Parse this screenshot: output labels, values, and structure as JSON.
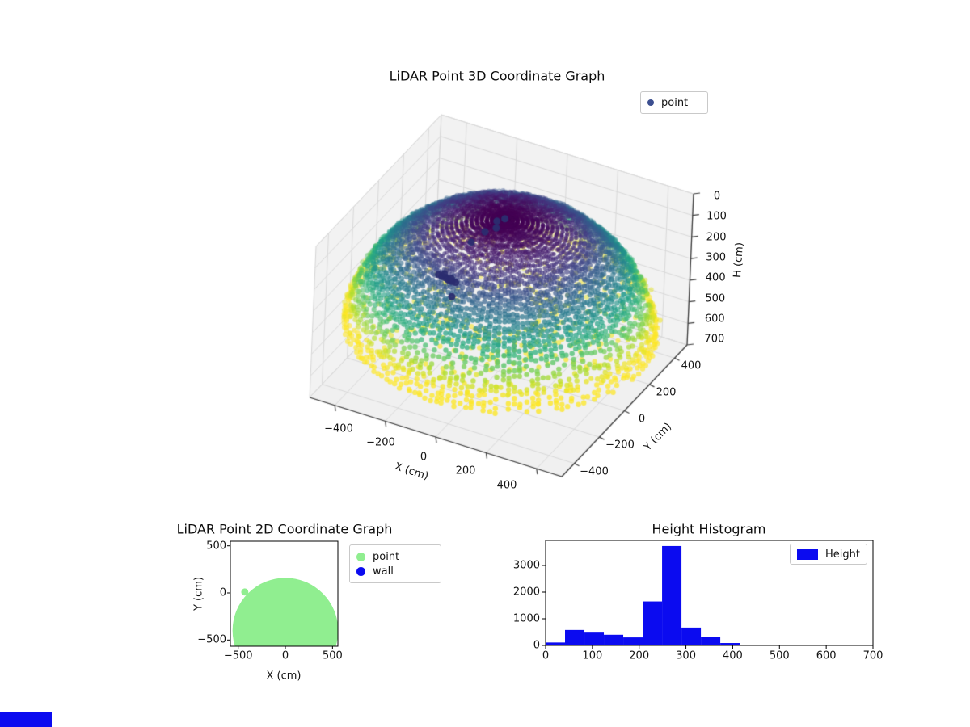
{
  "plots": {
    "p3d": {
      "title": "LiDAR Point 3D Coordinate Graph",
      "legend_label": "point",
      "legend_marker_color": "#3c4f90",
      "xlabel": "X (cm)",
      "ylabel": "Y (cm)",
      "zlabel": "H (cm)",
      "xticklabels": [
        "−400",
        "−200",
        "0",
        "200",
        "400"
      ],
      "yticklabels": [
        "−400",
        "−200",
        "0",
        "200",
        "400"
      ],
      "zticklabels": [
        "0",
        "100",
        "200",
        "300",
        "400",
        "500",
        "600",
        "700"
      ]
    },
    "p2d": {
      "title": "LiDAR Point 2D Coordinate Graph",
      "xlabel": "X (cm)",
      "ylabel": "Y (cm)",
      "xticklabels": [
        "−500",
        "0",
        "500"
      ],
      "yticklabels": [
        "500",
        "0",
        "−500"
      ],
      "legend": [
        {
          "label": "point",
          "color": "#90ee90"
        },
        {
          "label": "wall",
          "color": "#0b0bf0"
        }
      ]
    },
    "hist": {
      "title": "Height Histogram",
      "legend_label": "Height",
      "bar_color": "#0b0bf0",
      "xticklabels": [
        "0",
        "100",
        "200",
        "300",
        "400",
        "500",
        "600",
        "700"
      ],
      "yticklabels": [
        "0",
        "1000",
        "2000",
        "3000"
      ]
    }
  },
  "strip": {
    "color": "#0b0bf0"
  },
  "chart_data": [
    {
      "type": "scatter",
      "id": "lidar-3d",
      "title": "LiDAR Point 3D Coordinate Graph",
      "xlabel": "X (cm)",
      "ylabel": "Y (cm)",
      "zlabel": "H (cm)",
      "xlim": [
        -500,
        500
      ],
      "ylim": [
        -500,
        500
      ],
      "zlim": [
        0,
        700
      ],
      "z_axis_inverted": true,
      "xticks": [
        -400,
        -200,
        0,
        200,
        400
      ],
      "yticks": [
        -400,
        -200,
        0,
        200,
        400
      ],
      "zticks": [
        0,
        100,
        200,
        300,
        400,
        500,
        600,
        700
      ],
      "legend": [
        "point"
      ],
      "series": [
        {
          "name": "point",
          "marker": "circle",
          "colormap": "viridis",
          "color_by": "H",
          "geometry": "dense hemispherical LiDAR shell, radius ~560 cm centered at origin; H from 0 (dome top, dark purple) to ~415-480 cm (yellow skirt); sparse floor rings at H ~415 cm",
          "shell_radius_cm": 560,
          "floor_h_cm": 415,
          "color_vmax": 430,
          "viridis_stops": [
            [
              0,
              "#440154"
            ],
            [
              0.11,
              "#482878"
            ],
            [
              0.22,
              "#3e4a89"
            ],
            [
              0.33,
              "#31688e"
            ],
            [
              0.44,
              "#26828e"
            ],
            [
              0.55,
              "#1f9e89"
            ],
            [
              0.66,
              "#35b779"
            ],
            [
              0.77,
              "#6ece58"
            ],
            [
              0.88,
              "#b5de2b"
            ],
            [
              1,
              "#fde725"
            ]
          ],
          "floor_rings_cm": [
            150,
            192,
            234,
            276,
            318,
            360,
            402,
            444,
            486,
            528,
            556
          ]
        },
        {
          "name": "wall",
          "marker": "circle",
          "color": "#2b2d70",
          "points": [
            [
              -57,
              56,
              60
            ],
            [
              -35,
              75,
              52
            ],
            [
              -50,
              38,
              78
            ],
            [
              -84,
              18,
              96
            ],
            [
              -98,
              -63,
              100
            ],
            [
              -205,
              -95,
              270
            ],
            [
              -190,
              -100,
              270
            ],
            [
              -175,
              -103,
              268
            ],
            [
              -160,
              -106,
              272
            ],
            [
              -145,
              -110,
              270
            ],
            [
              -130,
              -112,
              268
            ],
            [
              -185,
              -90,
              262
            ],
            [
              -168,
              -96,
              276
            ],
            [
              -152,
              -101,
              265
            ],
            [
              -137,
              -123,
              330
            ]
          ]
        }
      ]
    },
    {
      "type": "scatter",
      "id": "lidar-2d",
      "title": "LiDAR Point 2D Coordinate Graph",
      "xlabel": "X (cm)",
      "ylabel": "Y (cm)",
      "xlim": [
        -583,
        557
      ],
      "ylim": [
        -566,
        549
      ],
      "xticks": [
        -500,
        0,
        500
      ],
      "yticks": [
        -500,
        0,
        500
      ],
      "legend": [
        "point",
        "wall"
      ],
      "series": [
        {
          "name": "point",
          "color": "#90ee90",
          "geometry": "solid disc of points, center (0, -400) cm, radius ~560 cm, clipped at plot bottom; small bump near (-430, 10)",
          "disc_center": [
            0,
            -400
          ],
          "disc_radius": 560,
          "bump": [
            -430,
            10,
            38
          ]
        },
        {
          "name": "wall",
          "color": "#0b0bf0",
          "points_visible": false
        }
      ]
    },
    {
      "type": "bar",
      "id": "height-histogram",
      "title": "Height Histogram",
      "legend": [
        "Height"
      ],
      "xlim": [
        0,
        700
      ],
      "ylim": [
        0,
        3940
      ],
      "xticks": [
        0,
        100,
        200,
        300,
        400,
        500,
        600,
        700
      ],
      "yticks": [
        0,
        1000,
        2000,
        3000
      ],
      "bin_edges": [
        0,
        41.5,
        83,
        124.5,
        166,
        207.5,
        249,
        290.5,
        332,
        373.5,
        415
      ],
      "series": [
        {
          "name": "Height",
          "color": "#0b0bf0",
          "values": [
            110,
            580,
            480,
            400,
            300,
            1650,
            3730,
            670,
            320,
            90
          ]
        }
      ]
    }
  ]
}
